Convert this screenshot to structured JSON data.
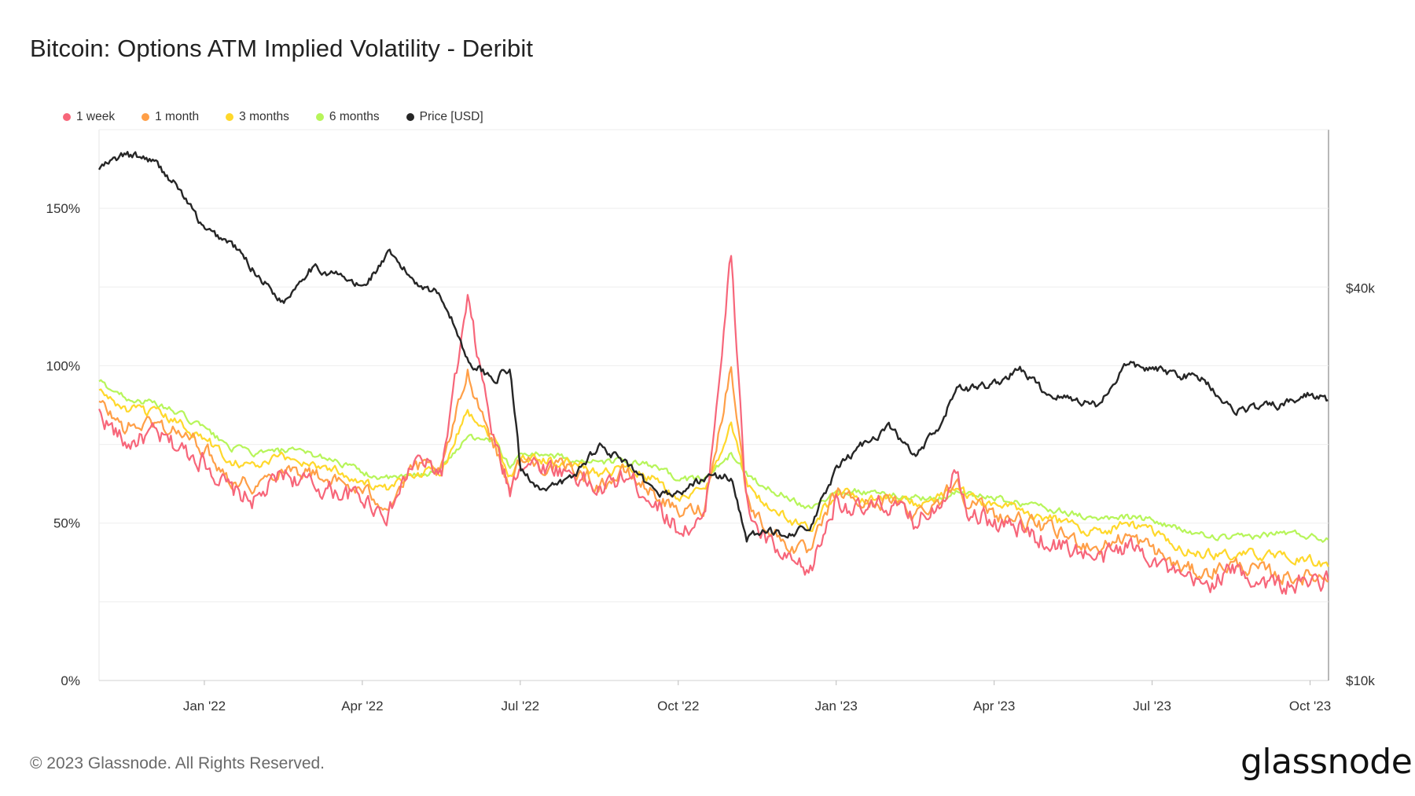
{
  "title": "Bitcoin: Options ATM Implied Volatility - Deribit",
  "footer": "© 2023 Glassnode. All Rights Reserved.",
  "logo_text": "glassnode",
  "legend": [
    {
      "label": "1 week",
      "color": "#f7667a"
    },
    {
      "label": "1 month",
      "color": "#ff9f47"
    },
    {
      "label": "3 months",
      "color": "#ffd82b"
    },
    {
      "label": "6 months",
      "color": "#b7f55a"
    },
    {
      "label": "Price [USD]",
      "color": "#262626"
    }
  ],
  "chart_data": {
    "type": "line",
    "title": "Bitcoin: Options ATM Implied Volatility - Deribit",
    "x_ticks": [
      "Jan '22",
      "Apr '22",
      "Jul '22",
      "Oct '22",
      "Jan '23",
      "Apr '23",
      "Jul '23",
      "Oct '23"
    ],
    "y_left_ticks": [
      "0%",
      "50%",
      "100%",
      "150%"
    ],
    "y_left_tick_values": [
      0,
      50,
      100,
      150
    ],
    "y_right_ticks": [
      "$10k",
      "$40k"
    ],
    "y_right_tick_values": [
      10000,
      40000
    ],
    "ylim_left": [
      0,
      175
    ],
    "ylim_right": [
      10000,
      70000
    ],
    "scale_right": "log",
    "x_range": [
      "2021-11-01",
      "2023-10-10"
    ],
    "x_tick_months": [
      2,
      5,
      8,
      11,
      14,
      17,
      20,
      23
    ],
    "x": [
      0,
      0.5,
      1,
      1.5,
      2,
      2.5,
      3,
      3.5,
      4,
      4.5,
      5,
      5.5,
      6,
      6.5,
      7,
      7.5,
      7.8,
      8,
      8.5,
      9,
      9.5,
      10,
      10.5,
      11,
      11.5,
      12,
      12.3,
      12.5,
      13,
      13.5,
      14,
      14.5,
      15,
      15.5,
      16,
      16.3,
      16.5,
      17,
      17.5,
      18,
      18.5,
      19,
      19.5,
      20,
      20.5,
      21,
      21.5,
      22,
      22.5,
      23,
      23.3
    ],
    "series": [
      {
        "name": "1 week",
        "values": [
          85,
          75,
          78,
          74,
          70,
          60,
          57,
          66,
          62,
          60,
          58,
          53,
          70,
          66,
          120,
          76,
          60,
          70,
          68,
          66,
          60,
          65,
          58,
          48,
          50,
          135,
          55,
          48,
          38,
          34,
          58,
          53,
          56,
          50,
          58,
          68,
          55,
          50,
          48,
          44,
          42,
          38,
          43,
          40,
          32,
          30,
          35,
          32,
          30,
          31,
          32
        ]
      },
      {
        "name": "1 month",
        "values": [
          88,
          80,
          82,
          79,
          74,
          64,
          62,
          68,
          66,
          63,
          60,
          56,
          68,
          66,
          98,
          75,
          62,
          70,
          68,
          67,
          62,
          66,
          60,
          53,
          55,
          100,
          58,
          52,
          44,
          40,
          60,
          56,
          57,
          53,
          58,
          64,
          57,
          53,
          51,
          48,
          45,
          42,
          46,
          42,
          36,
          34,
          37,
          35,
          33,
          33,
          33
        ]
      },
      {
        "name": "3 months",
        "values": [
          92,
          86,
          85,
          82,
          77,
          70,
          68,
          71,
          69,
          67,
          63,
          60,
          66,
          67,
          86,
          77,
          65,
          71,
          70,
          69,
          66,
          68,
          64,
          58,
          60,
          82,
          62,
          58,
          52,
          48,
          60,
          58,
          58,
          56,
          58,
          62,
          58,
          56,
          54,
          52,
          49,
          47,
          50,
          47,
          42,
          40,
          40,
          40,
          39,
          38,
          37
        ]
      },
      {
        "name": "6 months",
        "values": [
          95,
          90,
          88,
          85,
          80,
          74,
          72,
          73,
          72,
          70,
          66,
          64,
          65,
          67,
          78,
          76,
          68,
          72,
          72,
          70,
          69,
          70,
          68,
          64,
          64,
          72,
          66,
          63,
          59,
          55,
          60,
          60,
          59,
          58,
          58,
          60,
          59,
          58,
          56,
          55,
          53,
          51,
          52,
          51,
          48,
          46,
          45,
          46,
          47,
          46,
          45
        ]
      }
    ],
    "price_series": {
      "name": "Price [USD]",
      "values": [
        61000,
        64000,
        63000,
        57000,
        49000,
        47000,
        42000,
        38000,
        43000,
        42000,
        40000,
        45000,
        41000,
        39000,
        31000,
        29000,
        30000,
        21000,
        19500,
        20500,
        23000,
        21500,
        19500,
        19300,
        20500,
        20500,
        16500,
        16800,
        16900,
        17000,
        21000,
        23000,
        24500,
        22000,
        24500,
        28500,
        28000,
        28500,
        30000,
        27500,
        27000,
        26500,
        30500,
        30000,
        29500,
        29000,
        26000,
        26200,
        26500,
        27500,
        27000
      ]
    }
  }
}
